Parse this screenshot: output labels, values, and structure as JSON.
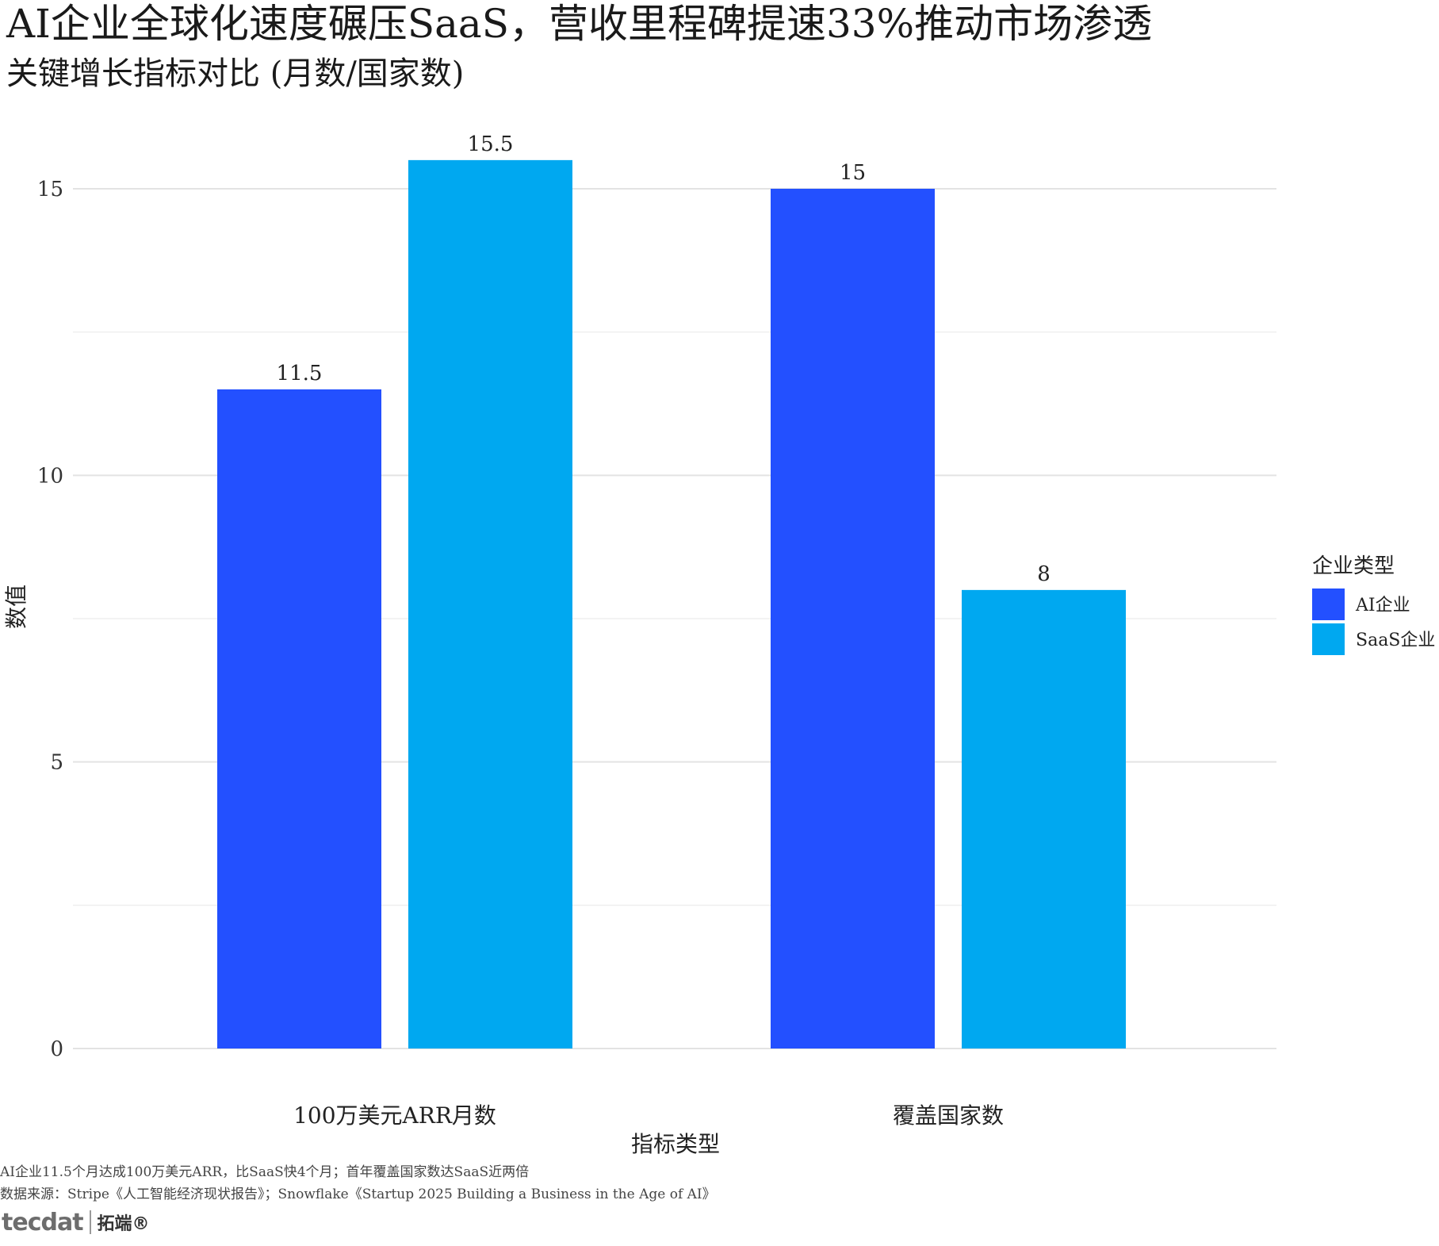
{
  "title": "AI企业全球化速度碾压SaaS，营收里程碑提速33%推动市场渗透",
  "subtitle": "关键增长指标对比 (月数/国家数)",
  "caption": "AI企业11.5个月达成100万美元ARR，比SaaS快4个月；首年覆盖国家数达SaaS近两倍",
  "source": "数据来源：Stripe《人工智能经济现状报告》；Snowflake《Startup 2025 Building a Business in the Age of AI》",
  "logo": {
    "brand": "tecdat",
    "cn": "拓端®"
  },
  "chart_data": {
    "type": "bar",
    "categories": [
      "100万美元ARR月数",
      "覆盖国家数"
    ],
    "series": [
      {
        "name": "AI企业",
        "values": [
          11.5,
          15
        ],
        "color": "#2350ff"
      },
      {
        "name": "SaaS企业",
        "values": [
          15.5,
          8
        ],
        "color": "#00a8f0"
      }
    ],
    "data_labels": [
      [
        "11.5",
        "15"
      ],
      [
        "15.5",
        "8"
      ]
    ],
    "xlabel": "指标类型",
    "ylabel": "数值",
    "ylim": [
      0,
      16.5
    ],
    "yticks": [
      0,
      5,
      10,
      15
    ],
    "grid": true,
    "legend_title": "企业类型",
    "legend_position": "right"
  }
}
